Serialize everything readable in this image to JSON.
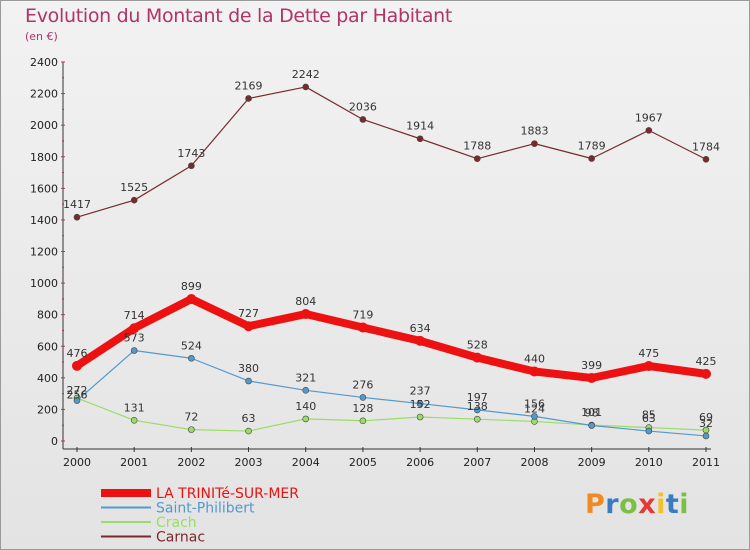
{
  "title": "Evolution du Montant de la Dette par Habitant",
  "subtitle": "(en €)",
  "logo": {
    "text": "Proxiti",
    "colors": [
      "#f08a24",
      "#3a7cc4",
      "#7bc043",
      "#e53935",
      "#f2c12e",
      "#3a7cc4",
      "#7bc043"
    ]
  },
  "chart_data": {
    "type": "line",
    "x": [
      "2000",
      "2001",
      "2002",
      "2003",
      "2004",
      "2005",
      "2006",
      "2007",
      "2008",
      "2009",
      "2010",
      "2011"
    ],
    "ylim": [
      0,
      2400
    ],
    "yticks": [
      0,
      200,
      400,
      600,
      800,
      1000,
      1200,
      1400,
      1600,
      1800,
      2000,
      2200,
      2400
    ],
    "grid": false,
    "legend_position": "bottom-left",
    "series": [
      {
        "name": "LA TRINITé-SUR-MER",
        "color": "#ee1111",
        "values": [
          476,
          714,
          899,
          727,
          804,
          719,
          634,
          528,
          440,
          399,
          475,
          425
        ]
      },
      {
        "name": "Saint-Philibert",
        "color": "#5599cc",
        "values": [
          256,
          573,
          524,
          380,
          321,
          276,
          237,
          197,
          156,
          98,
          63,
          32
        ]
      },
      {
        "name": "Crach",
        "color": "#99dd66",
        "values": [
          272,
          131,
          72,
          63,
          140,
          128,
          152,
          138,
          124,
          101,
          85,
          69
        ]
      },
      {
        "name": "Carnac",
        "color": "#7a2a2a",
        "values": [
          1417,
          1525,
          1743,
          2169,
          2242,
          2036,
          1914,
          1788,
          1883,
          1789,
          1967,
          1784
        ]
      }
    ]
  }
}
